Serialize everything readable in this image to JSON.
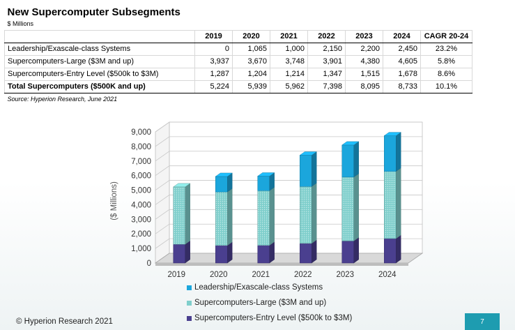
{
  "table": {
    "title": "New Supercomputer Subsegments",
    "units": "$ Millions",
    "headers": [
      "2019",
      "2020",
      "2021",
      "2022",
      "2023",
      "2024",
      "CAGR 20-24"
    ],
    "rows": [
      {
        "label": "Leadership/Exascale-class Systems",
        "values": [
          "0",
          "1,065",
          "1,000",
          "2,150",
          "2,200",
          "2,450"
        ],
        "cagr": "23.2%"
      },
      {
        "label": "Supercomputers-Large ($3M and up)",
        "values": [
          "3,937",
          "3,670",
          "3,748",
          "3,901",
          "4,380",
          "4,605"
        ],
        "cagr": "5.8%"
      },
      {
        "label": "Supercomputers-Entry Level ($500k to $3M)",
        "values": [
          "1,287",
          "1,204",
          "1,214",
          "1,347",
          "1,515",
          "1,678"
        ],
        "cagr": "8.6%"
      }
    ],
    "total": {
      "label": "Total Supercomputers ($500K and up)",
      "values": [
        "5,224",
        "5,939",
        "5,962",
        "7,398",
        "8,095",
        "8,733"
      ],
      "cagr": "10.1%"
    },
    "source": "Source: Hyperion Research, June 2021"
  },
  "chart_data": {
    "type": "bar",
    "stacked": true,
    "three_d": true,
    "categories": [
      "2019",
      "2020",
      "2021",
      "2022",
      "2023",
      "2024"
    ],
    "series": [
      {
        "name": "Supercomputers-Entry Level ($500k to $3M)",
        "values": [
          1287,
          1204,
          1214,
          1347,
          1515,
          1678
        ],
        "color": "#4a3f8f"
      },
      {
        "name": "Supercomputers-Large ($3M and up)",
        "values": [
          3937,
          3670,
          3748,
          3901,
          4380,
          4605
        ],
        "color": "#7fcfcc"
      },
      {
        "name": "Leadership/Exascale-class Systems",
        "values": [
          0,
          1065,
          1000,
          2150,
          2200,
          2450
        ],
        "color": "#1ba6dc"
      }
    ],
    "ylabel": "($ Millions)",
    "ylim": [
      0,
      9000
    ],
    "yticks": [
      0,
      1000,
      2000,
      3000,
      4000,
      5000,
      6000,
      7000,
      8000,
      9000
    ],
    "ytick_labels": [
      "0",
      "1,000",
      "2,000",
      "3,000",
      "4,000",
      "5,000",
      "6,000",
      "7,000",
      "8,000",
      "9,000"
    ],
    "grid": true,
    "legend_placement": "bottom",
    "legend_order": [
      "Leadership/Exascale-class Systems",
      "Supercomputers-Large ($3M and up)",
      "Supercomputers-Entry Level ($500k to $3M)"
    ]
  },
  "footer": {
    "copyright": "© Hyperion Research 2021",
    "page_number": "7",
    "accent_color": "#1e9cb0"
  }
}
